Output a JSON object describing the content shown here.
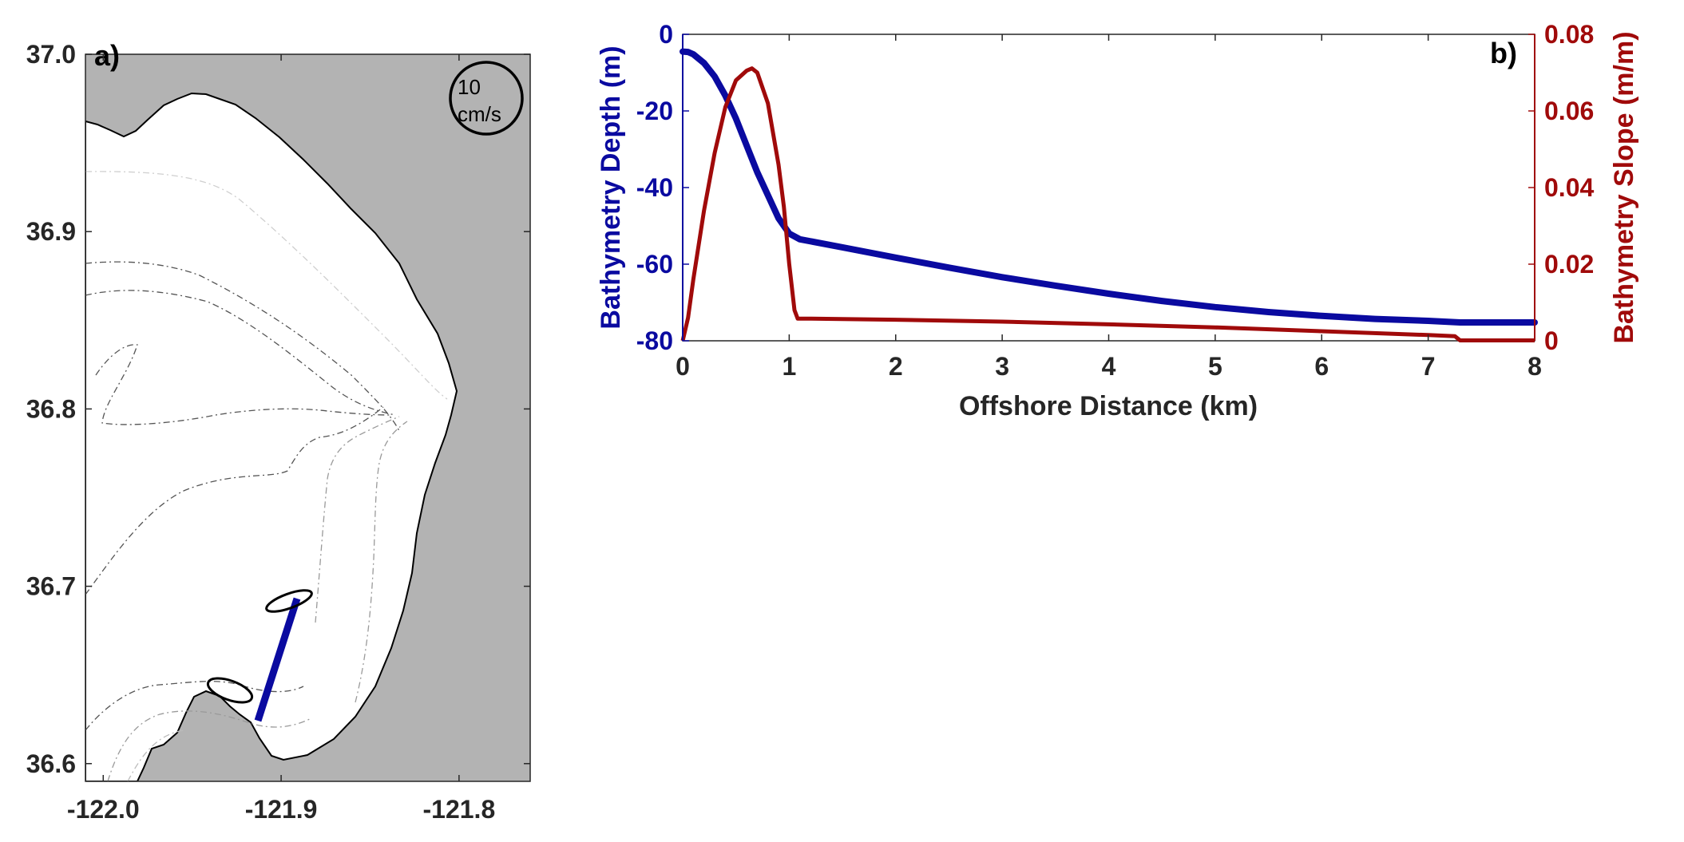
{
  "chart_data": [
    {
      "type": "map",
      "panel_label": "a)",
      "xlim": [
        -122.01,
        -121.76
      ],
      "ylim": [
        36.59,
        37.0
      ],
      "x_ticks": [
        -122.0,
        -121.9,
        -121.8
      ],
      "x_tick_labels": [
        "-122.0",
        "-121.9",
        "-121.8"
      ],
      "y_ticks": [
        36.6,
        36.7,
        36.8,
        36.9,
        37.0
      ],
      "y_tick_labels": [
        "36.6",
        "36.7",
        "36.8",
        "36.9",
        "37.0"
      ],
      "land_color": "#b3b3b3",
      "transect_color": "#0a0aa0",
      "transect": [
        [
          -121.902,
          36.625
        ],
        [
          -121.887,
          36.692
        ]
      ],
      "scale_circle": {
        "line1": "10",
        "line2": "cm/s"
      },
      "tidal_ellipses": [
        {
          "lon": -121.883,
          "lat": 36.69,
          "label": "ellipse-north"
        },
        {
          "lon": -121.924,
          "lat": 36.643,
          "label": "ellipse-south"
        }
      ]
    },
    {
      "type": "line",
      "panel_label": "b)",
      "xlabel": "Offshore Distance (km)",
      "ylabel_left": "Bathymetry Depth (m)",
      "ylabel_right": "Bathymetry Slope (m/m)",
      "xlim": [
        0,
        8
      ],
      "ylim_left": [
        -80,
        0
      ],
      "ylim_right": [
        0,
        0.08
      ],
      "x_ticks": [
        0,
        1,
        2,
        3,
        4,
        5,
        6,
        7,
        8
      ],
      "x_tick_labels": [
        "0",
        "1",
        "2",
        "3",
        "4",
        "5",
        "6",
        "7",
        "8"
      ],
      "y_left_ticks": [
        0,
        -20,
        -40,
        -60,
        -80
      ],
      "y_left_tick_labels": [
        "0",
        "-20",
        "-40",
        "-60",
        "-80"
      ],
      "y_right_ticks": [
        0,
        0.02,
        0.04,
        0.06,
        0.08
      ],
      "y_right_tick_labels": [
        "0",
        "0.02",
        "0.04",
        "0.06",
        "0.08"
      ],
      "left_color": "#0a0aa0",
      "right_color": "#a00a0a",
      "series": [
        {
          "axis": "left",
          "x": [
            0,
            0.05,
            0.1,
            0.2,
            0.3,
            0.4,
            0.5,
            0.6,
            0.7,
            0.8,
            0.9,
            1.0,
            1.1,
            1.5,
            2,
            2.5,
            3,
            3.5,
            4,
            4.5,
            5,
            5.5,
            6,
            6.5,
            7,
            7.3,
            8
          ],
          "y": [
            -4.5,
            -4.6,
            -5.2,
            -7.5,
            -11,
            -16,
            -22,
            -29,
            -36,
            -42,
            -48,
            -52,
            -53.5,
            -55.6,
            -58.3,
            -60.9,
            -63.4,
            -65.6,
            -67.7,
            -69.6,
            -71.2,
            -72.5,
            -73.5,
            -74.3,
            -74.8,
            -75.2,
            -75.2
          ]
        },
        {
          "axis": "right",
          "x": [
            0,
            0.05,
            0.1,
            0.2,
            0.3,
            0.4,
            0.5,
            0.6,
            0.65,
            0.7,
            0.8,
            0.9,
            0.95,
            1.0,
            1.05,
            1.08,
            1.2,
            2,
            3,
            4,
            5,
            6,
            7,
            7.25,
            7.3,
            8
          ],
          "y": [
            0,
            0.006,
            0.016,
            0.034,
            0.049,
            0.061,
            0.068,
            0.0705,
            0.0711,
            0.07,
            0.062,
            0.046,
            0.035,
            0.02,
            0.008,
            0.0058,
            0.0058,
            0.0055,
            0.005,
            0.0043,
            0.0035,
            0.0025,
            0.0015,
            0.0012,
            0.0001,
            0.0001
          ]
        }
      ]
    }
  ]
}
